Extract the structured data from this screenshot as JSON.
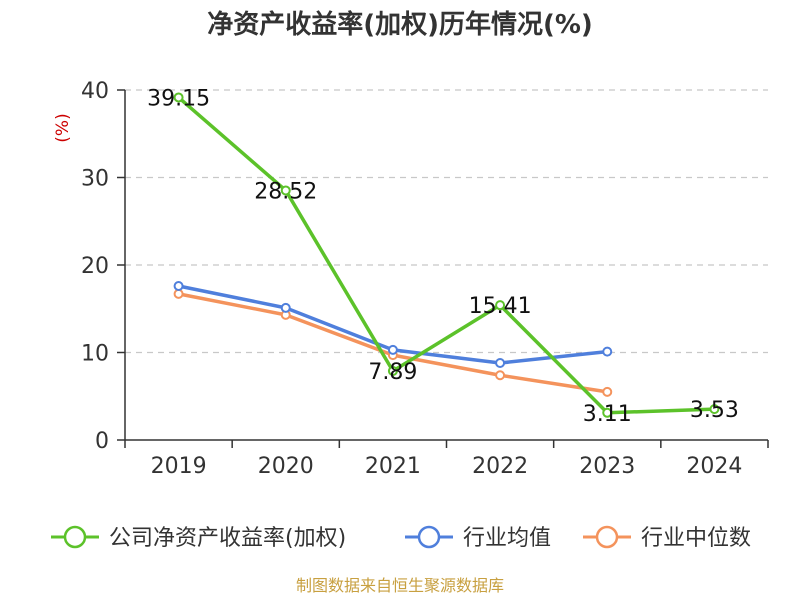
{
  "chart_data": {
    "type": "line",
    "title": "净资产收益率(加权)历年情况(%)",
    "ylabel": "(%)",
    "xlabel": "",
    "categories": [
      "2019",
      "2020",
      "2021",
      "2022",
      "2023",
      "2024"
    ],
    "ylim": [
      0,
      40
    ],
    "yticks": [
      0,
      10,
      20,
      30,
      40
    ],
    "grid": true,
    "legend_position": "bottom",
    "series": [
      {
        "name": "公司净资产收益率(加权)",
        "color": "#5cc22a",
        "values": [
          39.15,
          28.52,
          7.89,
          15.41,
          3.11,
          3.53
        ],
        "labels": [
          "39.15",
          "28.52",
          "7.89",
          "15.41",
          "3.11",
          "3.53"
        ]
      },
      {
        "name": "行业均值",
        "color": "#4f7fdc",
        "values": [
          17.6,
          15.1,
          10.3,
          8.8,
          10.1,
          null
        ]
      },
      {
        "name": "行业中位数",
        "color": "#f4935c",
        "values": [
          16.7,
          14.3,
          9.7,
          7.4,
          5.5,
          null
        ]
      }
    ]
  },
  "source": "制图数据来自恒生聚源数据库"
}
